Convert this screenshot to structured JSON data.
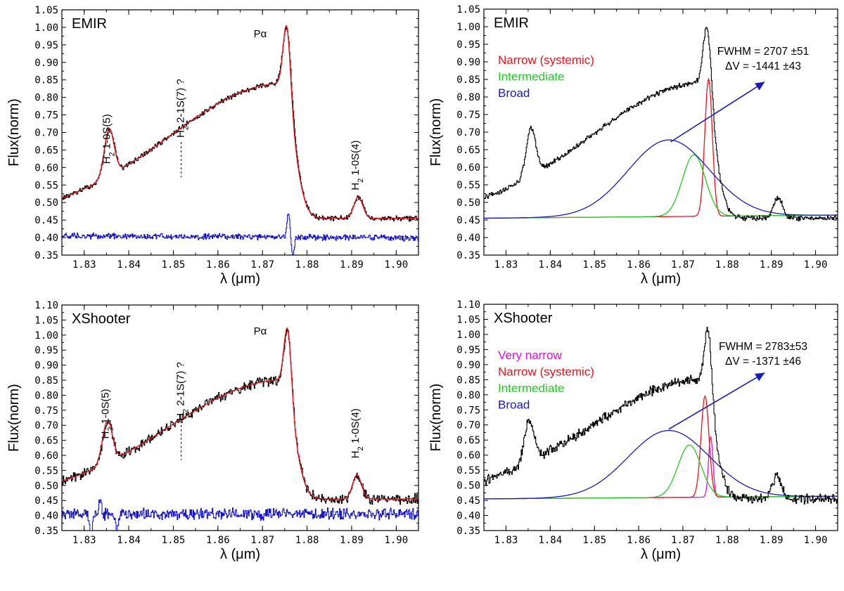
{
  "colors": {
    "observed": "#000000",
    "model": "#e8141b",
    "residual": "#1818c8",
    "narrow": "#e8141b",
    "intermediate": "#22cc22",
    "broad": "#1a1ac4",
    "very_narrow": "#e010e0",
    "arrow": "#1a1ac4"
  },
  "chart_data": [
    {
      "id": "emir-fit",
      "type": "line",
      "panel_label": "EMIR",
      "xlabel": "λ (μm)",
      "ylabel": "Flux(norm)",
      "xlim": [
        1.825,
        1.905
      ],
      "ylim": [
        0.35,
        1.05
      ],
      "xticks": [
        "1.83",
        "1.84",
        "1.85",
        "1.86",
        "1.87",
        "1.88",
        "1.89",
        "1.90"
      ],
      "yticks": [
        "0.35",
        "0.40",
        "0.45",
        "0.50",
        "0.55",
        "0.60",
        "0.65",
        "0.70",
        "0.75",
        "0.80",
        "0.85",
        "0.90",
        "0.95",
        "1.00",
        "1.05"
      ],
      "annotations": [
        {
          "key": "pa",
          "text": "Pα",
          "x": 1.8695,
          "y": 1.0
        },
        {
          "key": "h2a",
          "main": "H",
          "sub": "2",
          "rest": " 1-0S(5)",
          "x": 1.8358,
          "y": 0.61
        },
        {
          "key": "h2b",
          "main": "H",
          "sub": "2",
          "rest": " 2-1S(7) ?",
          "x": 1.8524,
          "y": 0.685
        },
        {
          "key": "h2c",
          "main": "H",
          "sub": "2",
          "rest": " 1-0S(4)",
          "x": 1.8916,
          "y": 0.535
        }
      ],
      "series": [
        {
          "name": "observed",
          "style": "step",
          "noise": 0.007,
          "params": {
            "base": 0.455,
            "broad": [
              0.385,
              1.8745,
              0.0255,
              0.0025
            ],
            "narrow": [
              0.18,
              1.8755,
              0.0009
            ],
            "extra": [
              [
                0.135,
                1.8356,
                0.0011
              ],
              [
                0.06,
                1.8915,
                0.001
              ]
            ]
          }
        },
        {
          "name": "model",
          "style": "smooth",
          "noise": 0.0,
          "params": {
            "base": 0.455,
            "broad": [
              0.385,
              1.8745,
              0.0255,
              0.0025
            ],
            "narrow": [
              0.19,
              1.8755,
              0.0008
            ],
            "extra": [
              [
                0.135,
                1.8356,
                0.0011
              ],
              [
                0.06,
                1.8915,
                0.001
              ]
            ]
          }
        },
        {
          "name": "residual",
          "style": "step",
          "noise": 0.008,
          "params": {
            "base": 0.402,
            "slope": -0.08,
            "spikes": [
              [
                1.8758,
                0.07
              ],
              [
                1.8767,
                -0.05
              ]
            ]
          }
        }
      ]
    },
    {
      "id": "emir-decomposition",
      "type": "line",
      "panel_label": "EMIR",
      "xlabel": "λ (μm)",
      "ylabel": "Flux(norm)",
      "xlim": [
        1.825,
        1.905
      ],
      "ylim": [
        0.35,
        1.05
      ],
      "xticks": [
        "1.83",
        "1.84",
        "1.85",
        "1.86",
        "1.87",
        "1.88",
        "1.89",
        "1.90"
      ],
      "yticks": [
        "0.35",
        "0.40",
        "0.45",
        "0.50",
        "0.55",
        "0.60",
        "0.65",
        "0.70",
        "0.75",
        "0.80",
        "0.85",
        "0.90",
        "0.95",
        "1.00",
        "1.05"
      ],
      "legend": [
        "Narrow (systemic)",
        "Intermediate",
        "Broad"
      ],
      "fit_text": [
        "FWHM = 2707 ±51",
        "ΔV = -1441 ±43"
      ],
      "arrow": {
        "from": [
          1.8672,
          0.672
        ],
        "to": [
          1.8885,
          0.843
        ]
      },
      "components": [
        {
          "name": "narrow",
          "center": 1.8758,
          "amplitude": 0.39,
          "sigma": 0.00085
        },
        {
          "name": "intermediate",
          "center": 1.8725,
          "amplitude": 0.175,
          "sigma": 0.0026
        },
        {
          "name": "broad",
          "center": 1.8668,
          "amplitude": 0.218,
          "sigma": 0.0092
        }
      ],
      "series": [
        {
          "name": "observed",
          "style": "step",
          "noise": 0.007,
          "params": {
            "base": 0.455,
            "broad": [
              0.385,
              1.8745,
              0.0255,
              0.0025
            ],
            "narrow": [
              0.18,
              1.8755,
              0.0009
            ],
            "extra": [
              [
                0.135,
                1.8356,
                0.0011
              ],
              [
                0.06,
                1.8915,
                0.001
              ]
            ]
          }
        }
      ]
    },
    {
      "id": "xshooter-fit",
      "type": "line",
      "panel_label": "XShooter",
      "xlabel": "λ (μm)",
      "ylabel": "Flux(norm)",
      "xlim": [
        1.825,
        1.905
      ],
      "ylim": [
        0.35,
        1.1
      ],
      "xticks": [
        "1.83",
        "1.84",
        "1.85",
        "1.86",
        "1.87",
        "1.88",
        "1.89",
        "1.90"
      ],
      "yticks": [
        "0.35",
        "0.40",
        "0.45",
        "0.50",
        "0.55",
        "0.60",
        "0.65",
        "0.70",
        "0.75",
        "0.80",
        "0.85",
        "0.90",
        "0.95",
        "1.00",
        "1.05",
        "1.10"
      ],
      "annotations": [
        {
          "key": "pa",
          "text": "Pα",
          "x": 1.8695,
          "y": 1.035
        },
        {
          "key": "h2a",
          "main": "H",
          "sub": "2",
          "rest": " 1-0S(5)",
          "x": 1.8355,
          "y": 0.655
        },
        {
          "key": "h2b",
          "main": "H",
          "sub": "2",
          "rest": " 2-1S(7) ?",
          "x": 1.8524,
          "y": 0.715
        },
        {
          "key": "h2c",
          "main": "H",
          "sub": "2",
          "rest": " 1-0S(4)",
          "x": 1.8916,
          "y": 0.59
        }
      ],
      "series": [
        {
          "name": "observed",
          "style": "step",
          "noise": 0.016,
          "params": {
            "base": 0.455,
            "broad": [
              0.395,
              1.8745,
              0.0255,
              0.0025
            ],
            "narrow": [
              0.2,
              1.8757,
              0.0008
            ],
            "extra": [
              [
                0.14,
                1.8352,
                0.0011
              ],
              [
                0.08,
                1.8912,
                0.001
              ]
            ]
          }
        },
        {
          "name": "model",
          "style": "smooth",
          "noise": 0.0,
          "params": {
            "base": 0.455,
            "broad": [
              0.395,
              1.8745,
              0.0255,
              0.0025
            ],
            "narrow": [
              0.21,
              1.8757,
              0.0008
            ],
            "extra": [
              [
                0.14,
                1.8352,
                0.0011
              ],
              [
                0.08,
                1.8912,
                0.001
              ]
            ]
          }
        },
        {
          "name": "residual",
          "style": "step",
          "noise": 0.018,
          "params": {
            "base": 0.405,
            "slope": 0.0,
            "spikes": [
              [
                1.8315,
                -0.06
              ],
              [
                1.8335,
                0.05
              ],
              [
                1.8372,
                -0.045
              ]
            ]
          }
        }
      ]
    },
    {
      "id": "xshooter-decomposition",
      "type": "line",
      "panel_label": "XShooter",
      "xlabel": "λ (μm)",
      "ylabel": "Flux(norm)",
      "xlim": [
        1.825,
        1.905
      ],
      "ylim": [
        0.35,
        1.1
      ],
      "xticks": [
        "1.83",
        "1.84",
        "1.85",
        "1.86",
        "1.87",
        "1.88",
        "1.89",
        "1.90"
      ],
      "yticks": [
        "0.35",
        "0.40",
        "0.45",
        "0.50",
        "0.55",
        "0.60",
        "0.65",
        "0.70",
        "0.75",
        "0.80",
        "0.85",
        "0.90",
        "0.95",
        "1.00",
        "1.05",
        "1.10"
      ],
      "legend": [
        "Very narrow",
        "Narrow (systemic)",
        "Intermediate",
        "Broad"
      ],
      "fit_text": [
        "FWHM = 2783±53",
        "ΔV = -1371 ±46"
      ],
      "arrow": {
        "from": [
          1.8668,
          0.686
        ],
        "to": [
          1.8885,
          0.873
        ]
      },
      "components": [
        {
          "name": "very_narrow",
          "center": 1.8763,
          "amplitude": 0.2,
          "sigma": 0.0005
        },
        {
          "name": "narrow",
          "center": 1.875,
          "amplitude": 0.335,
          "sigma": 0.0009
        },
        {
          "name": "intermediate",
          "center": 1.8715,
          "amplitude": 0.173,
          "sigma": 0.0026
        },
        {
          "name": "broad",
          "center": 1.8668,
          "amplitude": 0.222,
          "sigma": 0.0092
        }
      ],
      "series": [
        {
          "name": "observed",
          "style": "step",
          "noise": 0.016,
          "params": {
            "base": 0.455,
            "broad": [
              0.395,
              1.8745,
              0.0255,
              0.0025
            ],
            "narrow": [
              0.2,
              1.8757,
              0.0008
            ],
            "extra": [
              [
                0.14,
                1.8352,
                0.0011
              ],
              [
                0.08,
                1.8912,
                0.001
              ]
            ]
          }
        }
      ]
    }
  ]
}
